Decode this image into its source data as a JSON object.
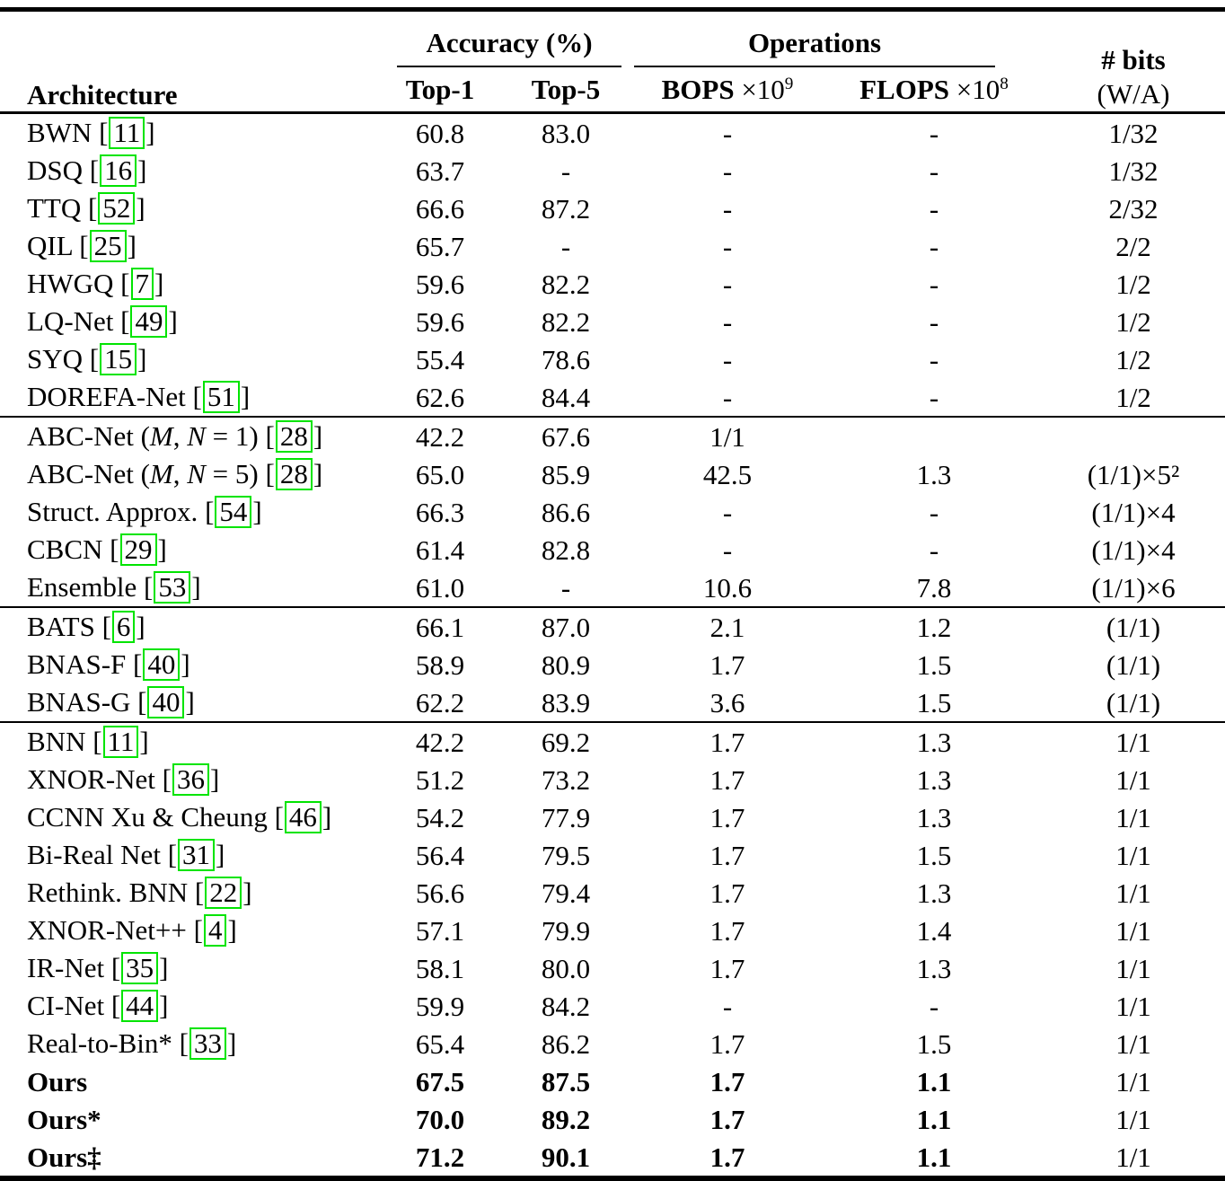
{
  "colors": {
    "citation_box_border": "#00e400",
    "text": "#000000",
    "rules": "#000000",
    "background": "#ffffff"
  },
  "table": {
    "headers": {
      "architecture": "Architecture",
      "accuracy_group": "Accuracy (%)",
      "operations_group": "Operations",
      "top1": "Top-1",
      "top5": "Top-5",
      "bops": "BOPS",
      "bops_scale": " ×10",
      "bops_exp": "9",
      "flops": "FLOPS",
      "flops_scale": " ×10",
      "flops_exp": "8",
      "bits_line1": "# bits",
      "bits_line2": "(W/A)"
    },
    "sections": [
      {
        "rows": [
          {
            "arch": "BWN",
            "cite": "11",
            "top1": "60.8",
            "top5": "83.0",
            "bops": "-",
            "flops": "-",
            "bits": "1/32"
          },
          {
            "arch": "DSQ",
            "cite": "16",
            "top1": "63.7",
            "top5": "-",
            "bops": "-",
            "flops": "-",
            "bits": "1/32"
          },
          {
            "arch": "TTQ",
            "cite": "52",
            "top1": "66.6",
            "top5": "87.2",
            "bops": "-",
            "flops": "-",
            "bits": "2/32"
          },
          {
            "arch": "QIL",
            "cite": "25",
            "top1": "65.7",
            "top5": "-",
            "bops": "-",
            "flops": "-",
            "bits": "2/2"
          },
          {
            "arch": "HWGQ",
            "cite": "7",
            "top1": "59.6",
            "top5": "82.2",
            "bops": "-",
            "flops": "-",
            "bits": "1/2"
          },
          {
            "arch": "LQ-Net",
            "cite": "49",
            "top1": "59.6",
            "top5": "82.2",
            "bops": "-",
            "flops": "-",
            "bits": "1/2"
          },
          {
            "arch": "SYQ",
            "cite": "15",
            "top1": "55.4",
            "top5": "78.6",
            "bops": "-",
            "flops": "-",
            "bits": "1/2"
          },
          {
            "arch": "DOREFA-Net",
            "cite": "51",
            "top1": "62.6",
            "top5": "84.4",
            "bops": "-",
            "flops": "-",
            "bits": "1/2"
          }
        ]
      },
      {
        "rows": [
          {
            "arch_segs": [
              {
                "t": "ABC-Net ("
              },
              {
                "t": "M",
                "it": true
              },
              {
                "t": ", "
              },
              {
                "t": "N",
                "it": true
              },
              {
                "t": " = 1)"
              }
            ],
            "cite": "28",
            "top1": "42.2",
            "top5": "67.6",
            "bops": "1/1",
            "flops": "",
            "bits": ""
          },
          {
            "arch_segs": [
              {
                "t": "ABC-Net ("
              },
              {
                "t": "M",
                "it": true
              },
              {
                "t": ", "
              },
              {
                "t": "N",
                "it": true
              },
              {
                "t": " = 5)"
              }
            ],
            "cite": "28",
            "top1": "65.0",
            "top5": "85.9",
            "bops": "42.5",
            "flops": "1.3",
            "bits": "(1/1)×5²"
          },
          {
            "arch": "Struct. Approx.",
            "cite": "54",
            "top1": "66.3",
            "top5": "86.6",
            "bops": "-",
            "flops": "-",
            "bits": "(1/1)×4"
          },
          {
            "arch": "CBCN",
            "cite": "29",
            "top1": "61.4",
            "top5": "82.8",
            "bops": "-",
            "flops": "-",
            "bits": "(1/1)×4"
          },
          {
            "arch": "Ensemble",
            "cite": "53",
            "top1": "61.0",
            "top5": "-",
            "bops": "10.6",
            "flops": "7.8",
            "bits": "(1/1)×6"
          }
        ]
      },
      {
        "rows": [
          {
            "arch": "BATS",
            "cite": "6",
            "top1": "66.1",
            "top5": "87.0",
            "bops": "2.1",
            "flops": "1.2",
            "bits": "(1/1)"
          },
          {
            "arch": "BNAS-F",
            "cite": "40",
            "top1": "58.9",
            "top5": "80.9",
            "bops": "1.7",
            "flops": "1.5",
            "bits": "(1/1)"
          },
          {
            "arch": "BNAS-G",
            "cite": "40",
            "top1": "62.2",
            "top5": "83.9",
            "bops": "3.6",
            "flops": "1.5",
            "bits": "(1/1)"
          }
        ]
      },
      {
        "rows": [
          {
            "arch": "BNN",
            "cite": "11",
            "top1": "42.2",
            "top5": "69.2",
            "bops": "1.7",
            "flops": "1.3",
            "bits": "1/1"
          },
          {
            "arch": "XNOR-Net",
            "cite": "36",
            "top1": "51.2",
            "top5": "73.2",
            "bops": "1.7",
            "flops": "1.3",
            "bits": "1/1"
          },
          {
            "arch": "CCNN Xu & Cheung",
            "cite": "46",
            "top1": "54.2",
            "top5": "77.9",
            "bops": "1.7",
            "flops": "1.3",
            "bits": "1/1"
          },
          {
            "arch": "Bi-Real Net",
            "cite": "31",
            "top1": "56.4",
            "top5": "79.5",
            "bops": "1.7",
            "flops": "1.5",
            "bits": "1/1"
          },
          {
            "arch": "Rethink. BNN",
            "cite": "22",
            "top1": "56.6",
            "top5": "79.4",
            "bops": "1.7",
            "flops": "1.3",
            "bits": "1/1"
          },
          {
            "arch": "XNOR-Net++",
            "cite": "4",
            "top1": "57.1",
            "top5": "79.9",
            "bops": "1.7",
            "flops": "1.4",
            "bits": "1/1"
          },
          {
            "arch": "IR-Net",
            "cite": "35",
            "top1": "58.1",
            "top5": "80.0",
            "bops": "1.7",
            "flops": "1.3",
            "bits": "1/1"
          },
          {
            "arch": "CI-Net",
            "cite": "44",
            "top1": "59.9",
            "top5": "84.2",
            "bops": "-",
            "flops": "-",
            "bits": "1/1"
          },
          {
            "arch": "Real-to-Bin*",
            "cite": "33",
            "top1": "65.4",
            "top5": "86.2",
            "bops": "1.7",
            "flops": "1.5",
            "bits": "1/1"
          },
          {
            "arch": "Ours",
            "bold": true,
            "top1": "67.5",
            "top5": "87.5",
            "bops": "1.7",
            "flops": "1.1",
            "bits": "1/1"
          },
          {
            "arch": "Ours*",
            "bold": true,
            "top1": "70.0",
            "top5": "89.2",
            "bops": "1.7",
            "flops": "1.1",
            "bits": "1/1"
          },
          {
            "arch": "Ours‡",
            "bold": true,
            "top1": "71.2",
            "top5": "90.1",
            "bops": "1.7",
            "flops": "1.1",
            "bits": "1/1"
          }
        ]
      }
    ]
  }
}
